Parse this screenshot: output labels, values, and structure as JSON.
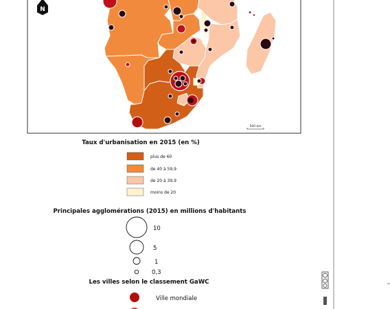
{
  "legend_urbanisation": {
    "title": "Taux d'urbanisation en 2015 (en %)",
    "classes": [
      {
        "label": "plus de 60",
        "color": "#d25f17"
      },
      {
        "label": "de 40 à 59,9",
        "color": "#f28a3d"
      },
      {
        "label": "de 20 à 39,9",
        "color": "#fbc7a7"
      },
      {
        "label": "moins de 20",
        "color": "#fff3cf"
      }
    ]
  },
  "legend_agglomerations": {
    "title": "Principales agglomérations (2015) en millions d'habitants",
    "values": [
      "10",
      "5",
      "1",
      "0,3"
    ]
  },
  "legend_gawc": {
    "title": "Les villes selon le classement GaWC",
    "classes": [
      {
        "label": "Ville mondiale",
        "color": "#b30d0d"
      }
    ]
  },
  "map": {
    "scale_label": "500 km",
    "north_label": "N",
    "colors": {
      "high": "#d25f17",
      "mid": "#f28a3d",
      "low": "#fbc7a7",
      "very_low": "#fff3cf",
      "city_fill": "#2a0a12",
      "city_ring": "#c0101a",
      "border": "#ffffff"
    }
  }
}
